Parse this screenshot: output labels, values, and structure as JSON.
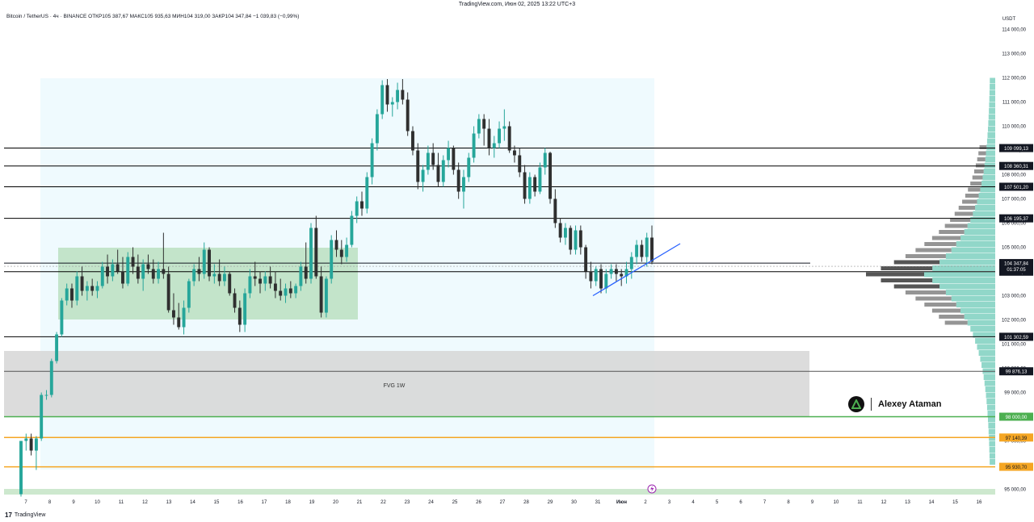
{
  "header": {
    "top_line": "TradingView.com, Июн 02, 2025 13:22 UTC+3",
    "symbol_line": "Bitcoin / TetherUS · 4ч · BINANCE  ОТКР105 387,67  МАКС105 935,63  МИН104 319,00  ЗАКР104 347,84  −1 039,83 (−0,99%)"
  },
  "footer": {
    "logo_mark": "17",
    "logo_text": "TradingView"
  },
  "watermark": {
    "name": "Alexey Ataman"
  },
  "chart_data": {
    "type": "candlestick",
    "symbol": "Bitcoin / TetherUS",
    "interval": "4ч",
    "exchange": "BINANCE",
    "currency": "USDT",
    "ylim": [
      94500,
      115000
    ],
    "y_ticks": [
      95000,
      96000,
      97000,
      98000,
      99000,
      100000,
      101000,
      102000,
      103000,
      104000,
      105000,
      106000,
      107000,
      108000,
      109000,
      110000,
      111000,
      112000,
      113000,
      114000
    ],
    "y_tick_labels": [
      "95 000,00",
      "96 000,00",
      "97 000,00",
      "98 000,00",
      "99 000,00",
      "100 000,00",
      "101 000,00",
      "102 000,00",
      "103 000,00",
      "104 000,00",
      "105 000,00",
      "106 000,00",
      "107 000,00",
      "108 000,00",
      "109 000,00",
      "110 000,00",
      "111 000,00",
      "112 000,00",
      "113 000,00",
      "114 000,00"
    ],
    "x_labels": [
      "7",
      "8",
      "9",
      "10",
      "11",
      "12",
      "13",
      "14",
      "15",
      "16",
      "17",
      "18",
      "19",
      "20",
      "21",
      "22",
      "23",
      "24",
      "25",
      "26",
      "27",
      "28",
      "29",
      "30",
      "31",
      "Июн",
      "2",
      "3",
      "4",
      "5",
      "6",
      "7",
      "8",
      "9",
      "10",
      "11",
      "12",
      "13",
      "14",
      "15",
      "16"
    ],
    "x_label_bold_index": 25,
    "up_color": "#26a69a",
    "down_color": "#2f2f2f",
    "price_lines": [
      {
        "price": 109099.13,
        "label": "109 099,13",
        "color": "#000000",
        "label_bg": "#131722"
      },
      {
        "price": 108360.31,
        "label": "108 360,31",
        "color": "#000000",
        "label_bg": "#131722"
      },
      {
        "price": 107501.2,
        "label": "107 501,20",
        "color": "#000000",
        "label_bg": "#131722"
      },
      {
        "price": 106195.37,
        "label": "106 195,37",
        "color": "#000000",
        "label_bg": "#131722"
      },
      {
        "price": 103991.86,
        "label": "103 991,86",
        "color": "#000000",
        "label_bg": "#131722"
      },
      {
        "price": 101302.59,
        "label": "101 302,59",
        "color": "#000000",
        "label_bg": "#131722"
      },
      {
        "price": 99876.13,
        "label": "99 876,13",
        "color": "#555555",
        "label_bg": "#131722"
      },
      {
        "price": 98000.0,
        "label": "98 000,00",
        "color": "#4caf50",
        "label_bg": "#4caf50"
      },
      {
        "price": 97140.39,
        "label": "97 140,39",
        "color": "#f5a623",
        "label_bg": "#f5a623"
      },
      {
        "price": 95930.7,
        "label": "95 930,70",
        "color": "#f5a623",
        "label_bg": "#f5a623"
      }
    ],
    "current_price": {
      "price": 104347.84,
      "label": "104 347,84",
      "countdown": "01:37:05"
    },
    "zone_label": "FVG 1W",
    "candles": [
      [
        94800,
        97000,
        94700,
        97000
      ],
      [
        97000,
        97300,
        96600,
        97100
      ],
      [
        97100,
        97300,
        96400,
        96600
      ],
      [
        96600,
        97200,
        95800,
        97100
      ],
      [
        97100,
        99000,
        97000,
        98900
      ],
      [
        98900,
        99100,
        98700,
        98900
      ],
      [
        98900,
        100400,
        98800,
        100300
      ],
      [
        100300,
        101500,
        100200,
        101400
      ],
      [
        101400,
        102900,
        101300,
        102800
      ],
      [
        102800,
        103500,
        102600,
        103300
      ],
      [
        103300,
        103500,
        102500,
        102800
      ],
      [
        102800,
        104000,
        102600,
        103800
      ],
      [
        103800,
        104200,
        103000,
        103200
      ],
      [
        103200,
        103600,
        102800,
        103400
      ],
      [
        103400,
        103700,
        103000,
        103200
      ],
      [
        103200,
        103600,
        102900,
        103400
      ],
      [
        103400,
        104400,
        103300,
        104200
      ],
      [
        104200,
        104700,
        103500,
        103800
      ],
      [
        103800,
        104500,
        103600,
        104300
      ],
      [
        104300,
        104900,
        103900,
        104000
      ],
      [
        104000,
        104600,
        103300,
        103500
      ],
      [
        103500,
        104800,
        103400,
        104600
      ],
      [
        104600,
        105000,
        103900,
        104200
      ],
      [
        104200,
        104700,
        103500,
        103700
      ],
      [
        103700,
        104500,
        103200,
        104300
      ],
      [
        104300,
        104700,
        103900,
        104100
      ],
      [
        104100,
        104500,
        103500,
        103700
      ],
      [
        103700,
        104400,
        103500,
        104100
      ],
      [
        104100,
        105600,
        103700,
        103900
      ],
      [
        103900,
        104200,
        102300,
        102400
      ],
      [
        102400,
        103100,
        101800,
        102100
      ],
      [
        102100,
        102700,
        101600,
        101700
      ],
      [
        101700,
        102800,
        101400,
        102500
      ],
      [
        102500,
        103700,
        102300,
        103600
      ],
      [
        103600,
        104300,
        103400,
        104100
      ],
      [
        104100,
        104600,
        103600,
        103900
      ],
      [
        103900,
        105200,
        103700,
        104900
      ],
      [
        104900,
        105000,
        103600,
        103800
      ],
      [
        103800,
        104300,
        103500,
        103900
      ],
      [
        103900,
        104500,
        103400,
        103600
      ],
      [
        103600,
        104200,
        103400,
        103900
      ],
      [
        103900,
        104000,
        103000,
        103100
      ],
      [
        103100,
        103300,
        102300,
        102500
      ],
      [
        102500,
        102800,
        101500,
        101800
      ],
      [
        101800,
        103300,
        101500,
        103100
      ],
      [
        103100,
        104100,
        102900,
        103800
      ],
      [
        103800,
        104400,
        103400,
        103700
      ],
      [
        103700,
        104000,
        103100,
        103500
      ],
      [
        103500,
        104000,
        103200,
        103800
      ],
      [
        103800,
        104200,
        103300,
        103500
      ],
      [
        103500,
        104000,
        102900,
        103200
      ],
      [
        103200,
        103700,
        102800,
        103000
      ],
      [
        103000,
        103500,
        102700,
        103300
      ],
      [
        103300,
        103600,
        102900,
        103100
      ],
      [
        103100,
        103500,
        102900,
        103400
      ],
      [
        103400,
        104400,
        103200,
        104200
      ],
      [
        104200,
        105200,
        103500,
        103700
      ],
      [
        103700,
        106000,
        103500,
        105800
      ],
      [
        105800,
        106300,
        103700,
        103800
      ],
      [
        103800,
        104200,
        102100,
        102300
      ],
      [
        102300,
        103800,
        102100,
        103700
      ],
      [
        103700,
        105500,
        103500,
        105300
      ],
      [
        105300,
        105700,
        104600,
        104900
      ],
      [
        104900,
        105300,
        104300,
        104600
      ],
      [
        104600,
        105400,
        104400,
        105100
      ],
      [
        105100,
        106500,
        105000,
        106300
      ],
      [
        106300,
        107100,
        106000,
        106900
      ],
      [
        106900,
        107300,
        106300,
        106600
      ],
      [
        106600,
        108100,
        106400,
        107900
      ],
      [
        107900,
        109500,
        107600,
        109300
      ],
      [
        109300,
        110700,
        109000,
        110500
      ],
      [
        110500,
        111900,
        110300,
        111700
      ],
      [
        111700,
        111950,
        110600,
        110900
      ],
      [
        110900,
        111200,
        110400,
        111000
      ],
      [
        111000,
        111800,
        110700,
        111500
      ],
      [
        111500,
        111950,
        110900,
        111100
      ],
      [
        111100,
        111400,
        109600,
        109800
      ],
      [
        109800,
        110000,
        108800,
        109000
      ],
      [
        109000,
        109300,
        107400,
        107700
      ],
      [
        107700,
        108400,
        107300,
        108200
      ],
      [
        108200,
        109200,
        108000,
        108900
      ],
      [
        108900,
        109300,
        108200,
        108400
      ],
      [
        108400,
        108900,
        107500,
        107700
      ],
      [
        107700,
        108800,
        107500,
        108600
      ],
      [
        108600,
        109400,
        108300,
        109100
      ],
      [
        109100,
        109200,
        108000,
        108200
      ],
      [
        108200,
        108500,
        107000,
        107300
      ],
      [
        107300,
        108200,
        106600,
        107900
      ],
      [
        107900,
        108900,
        107700,
        108700
      ],
      [
        108700,
        110000,
        108500,
        109700
      ],
      [
        109700,
        110500,
        109500,
        110300
      ],
      [
        110300,
        110500,
        109200,
        109900
      ],
      [
        109900,
        110300,
        108800,
        109100
      ],
      [
        109100,
        109600,
        108700,
        109300
      ],
      [
        109300,
        110200,
        109100,
        109900
      ],
      [
        109900,
        110700,
        109400,
        110000
      ],
      [
        110000,
        110200,
        108900,
        109000
      ],
      [
        109000,
        109200,
        108500,
        108800
      ],
      [
        108800,
        109100,
        107900,
        108100
      ],
      [
        108100,
        108400,
        106800,
        107000
      ],
      [
        107000,
        108100,
        106800,
        107900
      ],
      [
        107900,
        108000,
        107100,
        107300
      ],
      [
        107300,
        108500,
        107200,
        108300
      ],
      [
        108300,
        109100,
        108000,
        108900
      ],
      [
        108900,
        108950,
        106800,
        107000
      ],
      [
        107000,
        107400,
        105800,
        106000
      ],
      [
        106000,
        106200,
        105200,
        105400
      ],
      [
        105400,
        106000,
        105100,
        105800
      ],
      [
        105800,
        105900,
        104700,
        104900
      ],
      [
        104900,
        105900,
        104700,
        105700
      ],
      [
        105700,
        105900,
        104700,
        105000
      ],
      [
        105000,
        105100,
        103700,
        104000
      ],
      [
        104000,
        104400,
        103300,
        103600
      ],
      [
        103600,
        104200,
        103400,
        104100
      ],
      [
        104100,
        104300,
        103100,
        103300
      ],
      [
        103300,
        104100,
        103100,
        103900
      ],
      [
        103900,
        104300,
        103700,
        104100
      ],
      [
        104100,
        104300,
        103600,
        103900
      ],
      [
        103900,
        104100,
        103400,
        103800
      ],
      [
        103800,
        104400,
        103500,
        104100
      ],
      [
        104100,
        104800,
        103700,
        104600
      ],
      [
        104600,
        105300,
        104300,
        105100
      ],
      [
        105100,
        105300,
        104400,
        104600
      ],
      [
        104600,
        105600,
        104200,
        105400
      ],
      [
        105400,
        105900,
        104300,
        104400
      ]
    ],
    "annotations": {
      "fvg_zone": {
        "label": "FVG 1W"
      },
      "trendline": {
        "from_price": 103000,
        "to_price": 105150
      }
    }
  }
}
